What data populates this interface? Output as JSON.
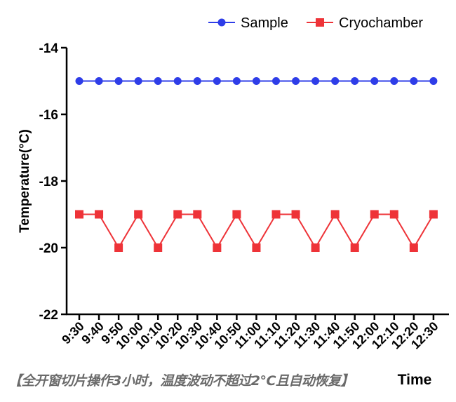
{
  "chart_data": {
    "type": "line",
    "title": "",
    "xlabel": "Time",
    "ylabel": "Temperature(°C)",
    "ylim": [
      -22,
      -14
    ],
    "yticks": [
      -14,
      -16,
      -18,
      -20,
      -22
    ],
    "ytick_labels": [
      "-14",
      "-16",
      "-18",
      "-20",
      "-22"
    ],
    "grid": false,
    "legend_position": "top-right",
    "categories": [
      "9:30",
      "9:40",
      "9:50",
      "10:00",
      "10:10",
      "10:20",
      "10:30",
      "10:40",
      "10:50",
      "11:00",
      "11:10",
      "11:20",
      "11:30",
      "11:40",
      "11:50",
      "12:00",
      "12:10",
      "12:20",
      "12:30"
    ],
    "series": [
      {
        "name": "Sample",
        "color": "#2e3de8",
        "marker": "circle",
        "values": [
          -15,
          -15,
          -15,
          -15,
          -15,
          -15,
          -15,
          -15,
          -15,
          -15,
          -15,
          -15,
          -15,
          -15,
          -15,
          -15,
          -15,
          -15,
          -15
        ]
      },
      {
        "name": "Cryochamber",
        "color": "#ee3338",
        "marker": "square",
        "values": [
          -19,
          -19,
          -20,
          -19,
          -20,
          -19,
          -19,
          -20,
          -19,
          -20,
          -19,
          -19,
          -20,
          -19,
          -20,
          -19,
          -19,
          -20,
          -19
        ]
      }
    ],
    "annotation": "【全开窗切片操作3小时，温度波动不超过2°C且自动恢复】"
  }
}
